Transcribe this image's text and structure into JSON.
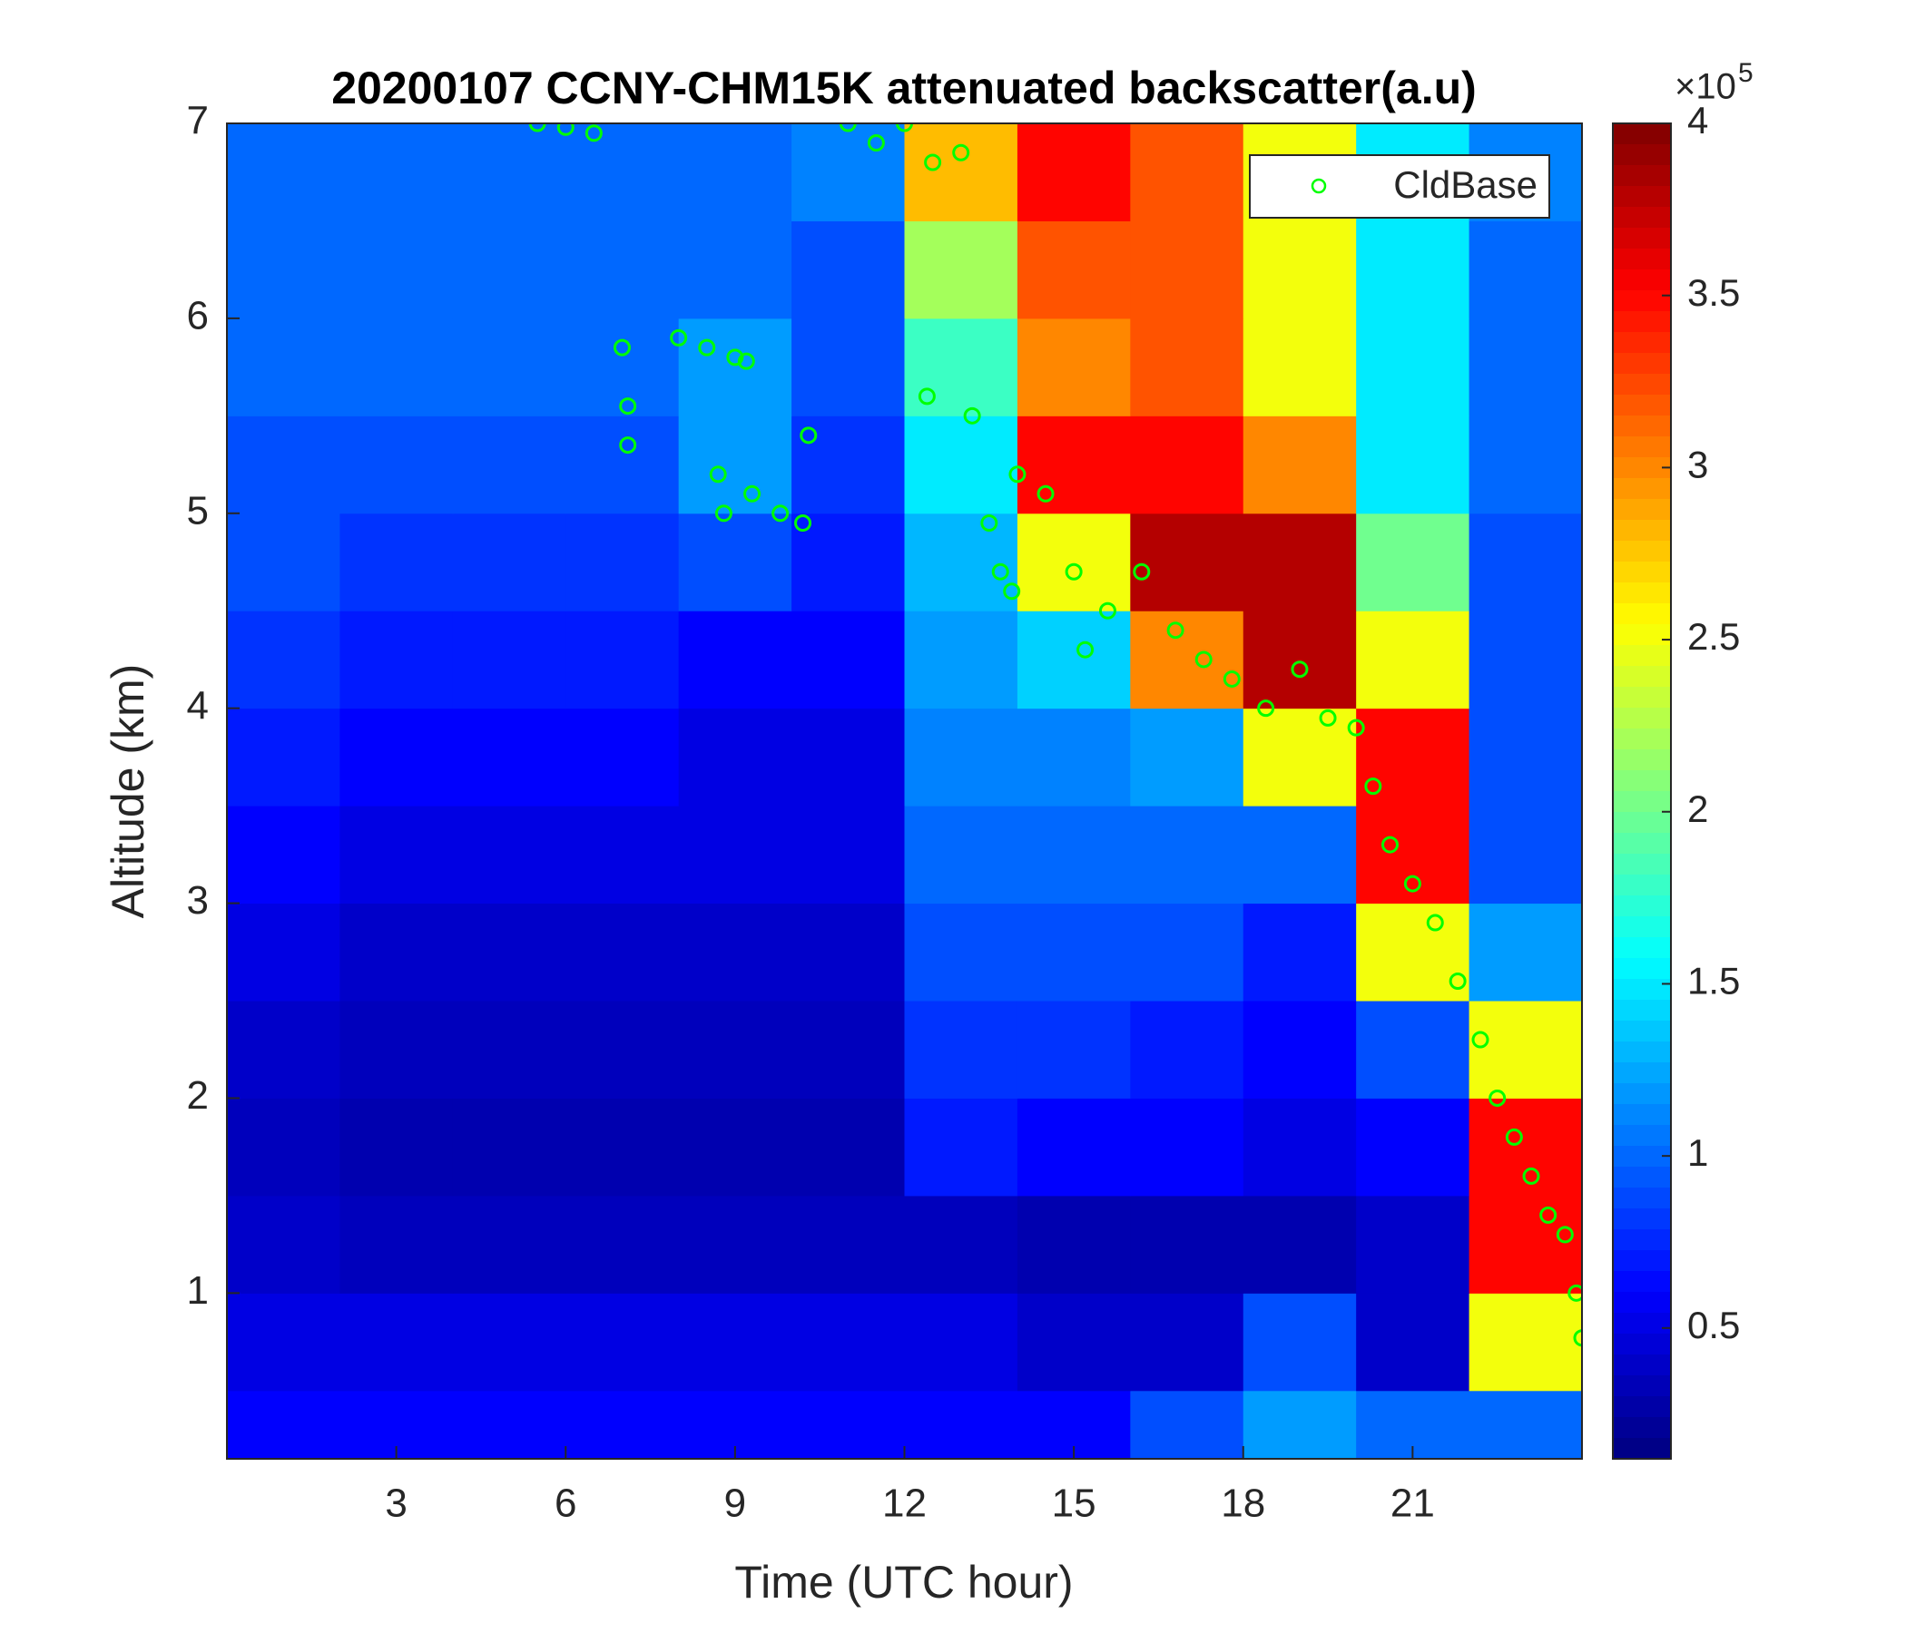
{
  "chart_data": {
    "type": "heatmap",
    "title": "20200107 CCNY-CHM15K attenuated backscatter(a.u)",
    "x_label": "Time (UTC hour)",
    "y_label": "Altitude (km)",
    "xlim": [
      0,
      24
    ],
    "xticks": [
      3,
      6,
      9,
      12,
      15,
      18,
      21
    ],
    "ylim": [
      0.15,
      7
    ],
    "yticks": [
      1,
      2,
      3,
      4,
      5,
      6,
      7
    ],
    "colormap": "jet",
    "clim": [
      0.12,
      4
    ],
    "cticks": [
      0.5,
      1,
      1.5,
      2,
      2.5,
      3,
      3.5,
      4
    ],
    "colorbar_multiplier": "×10",
    "colorbar_exponent": "5",
    "x_edges": [
      0,
      2,
      4,
      6,
      8,
      10,
      12,
      14,
      16,
      18,
      20,
      22,
      24
    ],
    "y_edges": [
      0,
      0.5,
      1,
      1.5,
      2,
      2.5,
      3,
      3.5,
      4,
      4.5,
      5,
      5.5,
      6,
      6.5,
      7
    ],
    "z": [
      [
        0.6,
        0.6,
        0.6,
        0.6,
        0.6,
        0.6,
        0.6,
        0.6,
        0.9,
        1.2,
        1.0,
        1.0
      ],
      [
        0.5,
        0.5,
        0.5,
        0.5,
        0.5,
        0.5,
        0.5,
        0.4,
        0.4,
        0.9,
        0.4,
        2.5
      ],
      [
        0.4,
        0.35,
        0.35,
        0.35,
        0.35,
        0.35,
        0.35,
        0.3,
        0.3,
        0.3,
        0.4,
        3.5
      ],
      [
        0.35,
        0.3,
        0.3,
        0.3,
        0.3,
        0.3,
        0.7,
        0.6,
        0.6,
        0.5,
        0.6,
        3.5
      ],
      [
        0.4,
        0.35,
        0.35,
        0.35,
        0.35,
        0.35,
        0.8,
        0.8,
        0.7,
        0.6,
        0.9,
        2.5
      ],
      [
        0.5,
        0.4,
        0.4,
        0.4,
        0.4,
        0.4,
        0.9,
        0.9,
        0.9,
        0.7,
        2.5,
        1.2
      ],
      [
        0.6,
        0.5,
        0.5,
        0.5,
        0.5,
        0.5,
        1.0,
        1.0,
        1.0,
        1.0,
        3.5,
        0.9
      ],
      [
        0.7,
        0.6,
        0.6,
        0.6,
        0.5,
        0.5,
        1.1,
        1.1,
        1.2,
        2.5,
        3.5,
        0.9
      ],
      [
        0.8,
        0.7,
        0.7,
        0.7,
        0.6,
        0.6,
        1.2,
        1.4,
        3.0,
        3.8,
        2.5,
        0.9
      ],
      [
        0.9,
        0.8,
        0.8,
        0.8,
        0.9,
        0.7,
        1.3,
        2.5,
        3.8,
        3.8,
        2.0,
        0.9
      ],
      [
        0.9,
        0.9,
        0.9,
        0.9,
        1.2,
        0.8,
        1.5,
        3.5,
        3.5,
        3.0,
        1.5,
        1.0
      ],
      [
        1.0,
        1.0,
        1.0,
        1.0,
        1.2,
        0.9,
        1.8,
        3.0,
        3.2,
        2.5,
        1.5,
        1.0
      ],
      [
        1.0,
        1.0,
        1.0,
        1.0,
        1.0,
        0.9,
        2.2,
        3.2,
        3.2,
        2.5,
        1.5,
        1.0
      ],
      [
        1.0,
        1.0,
        1.0,
        1.0,
        1.0,
        1.1,
        2.8,
        3.5,
        3.2,
        2.5,
        1.5,
        1.1
      ]
    ],
    "series": [
      {
        "name": "CldBase",
        "color": "#00ff00",
        "x": [
          5.5,
          6,
          6.5,
          7,
          7.1,
          7.1,
          8,
          8.5,
          9,
          9.2,
          8.7,
          8.8,
          9.3,
          9.8,
          10.2,
          10.3,
          11,
          11.5,
          12,
          12.5,
          13,
          12.4,
          13.2,
          13.5,
          13.7,
          13.9,
          14,
          14.5,
          15,
          15.2,
          15.6,
          16.2,
          16.8,
          17.3,
          17.8,
          18.4,
          19,
          19.5,
          20,
          20.3,
          20.6,
          21,
          21.4,
          21.8,
          22.2,
          22.5,
          22.8,
          23.1,
          23.4,
          23.7,
          23.9,
          24
        ],
        "values": [
          7.0,
          6.98,
          6.95,
          5.85,
          5.55,
          5.35,
          5.9,
          5.85,
          5.8,
          5.78,
          5.2,
          5.0,
          5.1,
          5.0,
          4.95,
          5.4,
          7.0,
          6.9,
          7.0,
          6.8,
          6.85,
          5.6,
          5.5,
          4.95,
          4.7,
          4.6,
          5.2,
          5.1,
          4.7,
          4.3,
          4.5,
          4.7,
          4.4,
          4.25,
          4.15,
          4.0,
          4.2,
          3.95,
          3.9,
          3.6,
          3.3,
          3.1,
          2.9,
          2.6,
          2.3,
          2.0,
          1.8,
          1.6,
          1.4,
          1.3,
          1.0,
          0.77
        ]
      }
    ],
    "legend": "upper right"
  }
}
